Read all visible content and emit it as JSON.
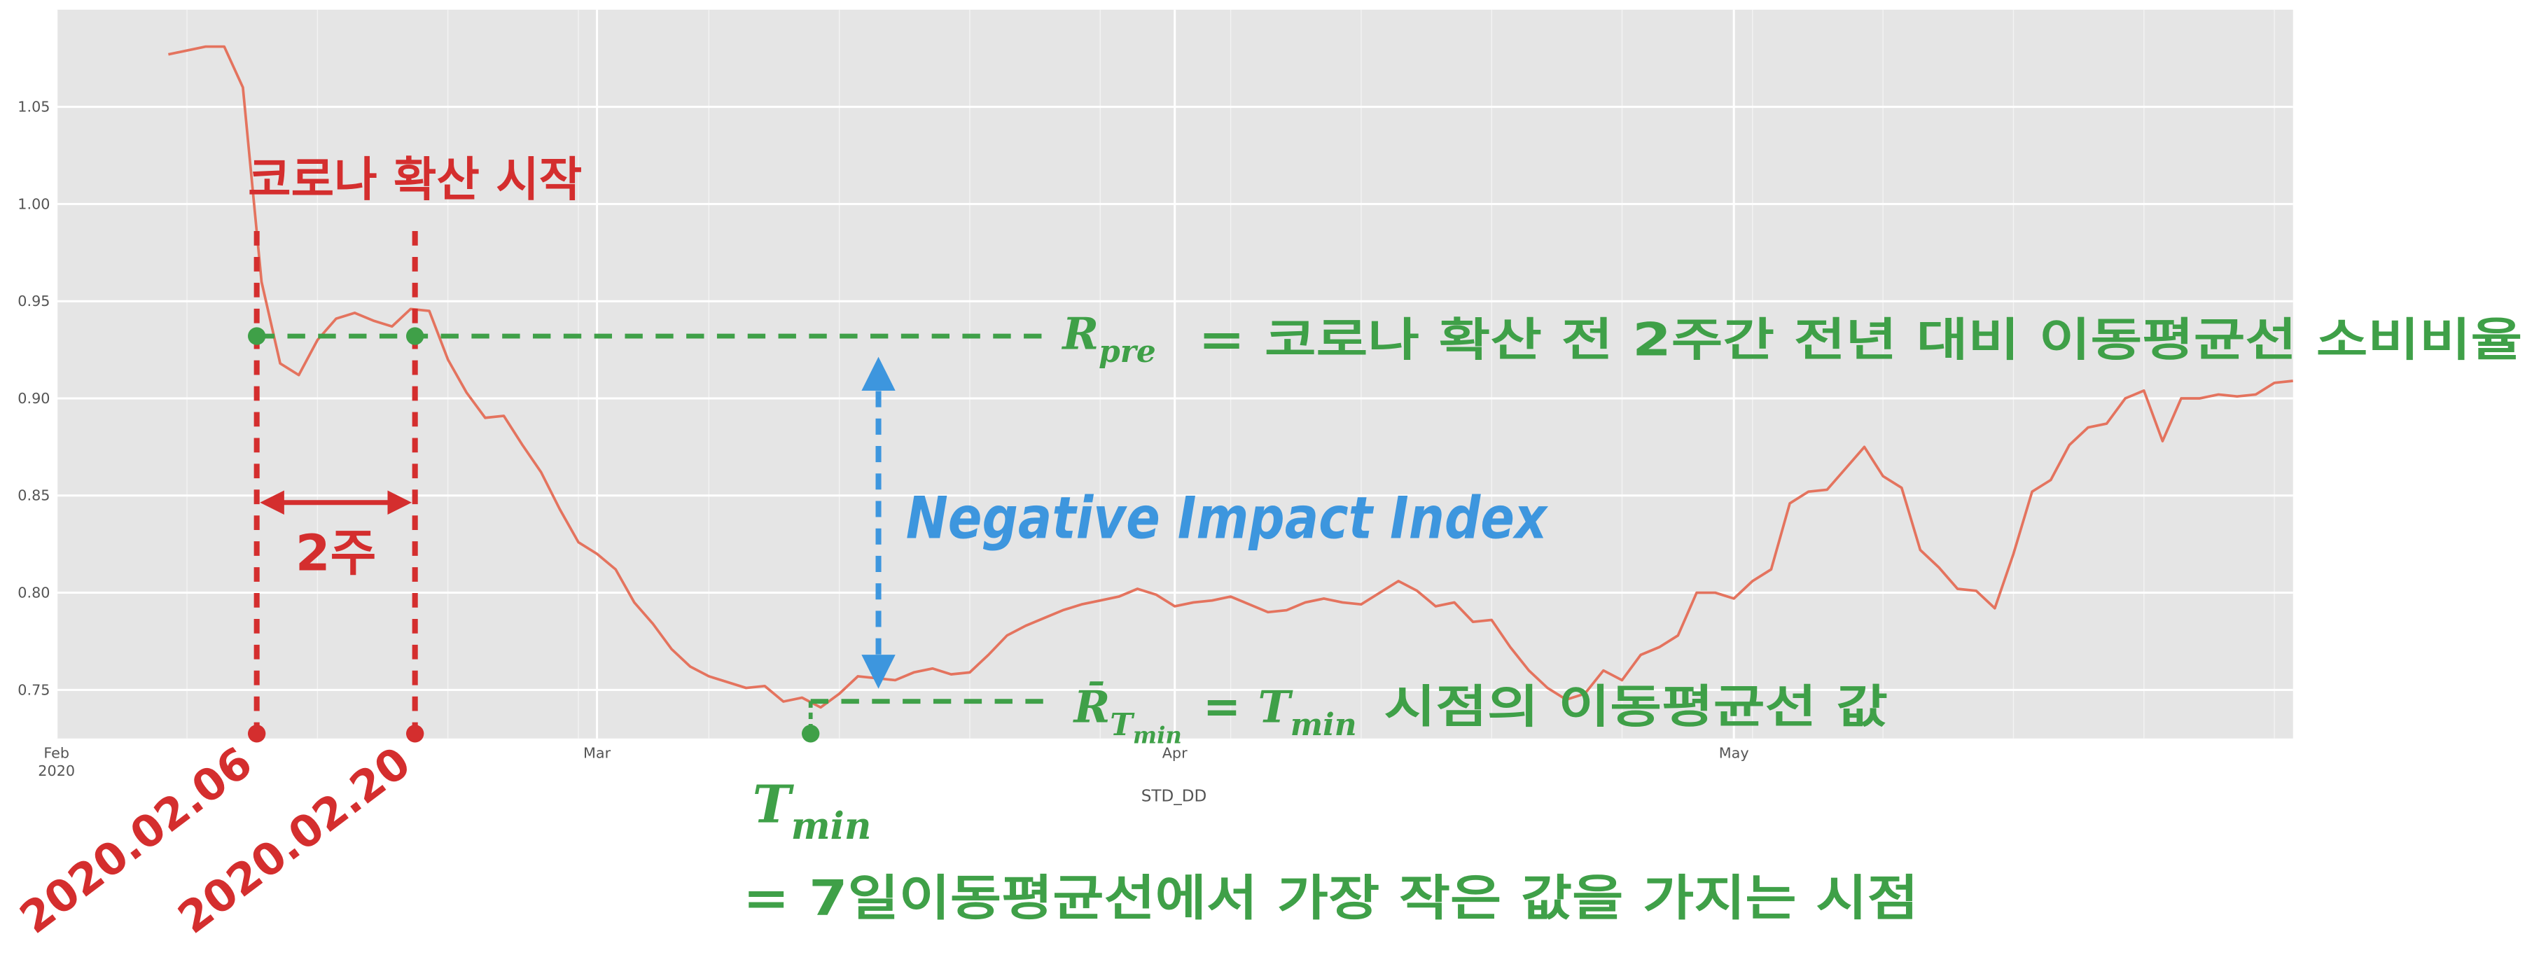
{
  "chart_data": {
    "type": "line",
    "xlabel": "STD_DD",
    "ylabel": "",
    "xlim": [
      "2020-02-01",
      "2020-05-31"
    ],
    "ylim": [
      0.725,
      1.1
    ],
    "grid": true,
    "y_ticks": [
      0.75,
      0.8,
      0.85,
      0.9,
      0.95,
      1.0,
      1.05
    ],
    "y_tick_labels": [
      "0.75",
      "0.80",
      "0.85",
      "0.90",
      "0.95",
      "1.00",
      "1.05"
    ],
    "x_ticks": [
      {
        "date": "2020-02-01",
        "label": "Feb",
        "sublabel": "2020"
      },
      {
        "date": "2020-03-01",
        "label": "Mar",
        "sublabel": ""
      },
      {
        "date": "2020-04-01",
        "label": "Apr",
        "sublabel": ""
      },
      {
        "date": "2020-05-01",
        "label": "May",
        "sublabel": ""
      }
    ],
    "series": [
      {
        "color": "#e4735e",
        "x": [
          "2020-02-07",
          "2020-02-09",
          "2020-02-10",
          "2020-02-11",
          "2020-02-12",
          "2020-02-13",
          "2020-02-14",
          "2020-02-15",
          "2020-02-16",
          "2020-02-17",
          "2020-02-18",
          "2020-02-19",
          "2020-02-20",
          "2020-02-21",
          "2020-02-22",
          "2020-02-23",
          "2020-02-24",
          "2020-02-25",
          "2020-02-26",
          "2020-02-27",
          "2020-02-28",
          "2020-02-29",
          "2020-03-01",
          "2020-03-02",
          "2020-03-03",
          "2020-03-04",
          "2020-03-05",
          "2020-03-06",
          "2020-03-07",
          "2020-03-09",
          "2020-03-10",
          "2020-03-11",
          "2020-03-12",
          "2020-03-13",
          "2020-03-14",
          "2020-03-15",
          "2020-03-16",
          "2020-03-17",
          "2020-03-18",
          "2020-03-19",
          "2020-03-20",
          "2020-03-21",
          "2020-03-22",
          "2020-03-23",
          "2020-03-24",
          "2020-03-25",
          "2020-03-26",
          "2020-03-27",
          "2020-03-28",
          "2020-03-29",
          "2020-03-30",
          "2020-03-31",
          "2020-04-01",
          "2020-04-02",
          "2020-04-03",
          "2020-04-04",
          "2020-04-05",
          "2020-04-06",
          "2020-04-07",
          "2020-04-08",
          "2020-04-09",
          "2020-04-10",
          "2020-04-11",
          "2020-04-12",
          "2020-04-13",
          "2020-04-14",
          "2020-04-15",
          "2020-04-16",
          "2020-04-17",
          "2020-04-18",
          "2020-04-19",
          "2020-04-20",
          "2020-04-21",
          "2020-04-22",
          "2020-04-23",
          "2020-04-24",
          "2020-04-25",
          "2020-04-26",
          "2020-04-27",
          "2020-04-28",
          "2020-04-29",
          "2020-04-30",
          "2020-05-01",
          "2020-05-02",
          "2020-05-03",
          "2020-05-04",
          "2020-05-05",
          "2020-05-06",
          "2020-05-07",
          "2020-05-08",
          "2020-05-09",
          "2020-05-10",
          "2020-05-11",
          "2020-05-12",
          "2020-05-13",
          "2020-05-14",
          "2020-05-15",
          "2020-05-16",
          "2020-05-17",
          "2020-05-18",
          "2020-05-19",
          "2020-05-20",
          "2020-05-21",
          "2020-05-22",
          "2020-05-23",
          "2020-05-24",
          "2020-05-25",
          "2020-05-26",
          "2020-05-27",
          "2020-05-28",
          "2020-05-29",
          "2020-05-30",
          "2020-05-31"
        ],
        "values": [
          1.077,
          1.081,
          1.081,
          1.06,
          0.96,
          0.918,
          0.912,
          0.93,
          0.941,
          0.944,
          0.94,
          0.937,
          0.946,
          0.945,
          0.92,
          0.903,
          0.89,
          0.891,
          0.876,
          0.862,
          0.843,
          0.826,
          0.82,
          0.812,
          0.795,
          0.784,
          0.771,
          0.762,
          0.757,
          0.751,
          0.752,
          0.744,
          0.746,
          0.741,
          0.748,
          0.757,
          0.756,
          0.755,
          0.759,
          0.761,
          0.758,
          0.759,
          0.768,
          0.778,
          0.783,
          0.787,
          0.791,
          0.794,
          0.796,
          0.798,
          0.802,
          0.799,
          0.793,
          0.795,
          0.796,
          0.798,
          0.794,
          0.79,
          0.791,
          0.795,
          0.797,
          0.795,
          0.794,
          0.8,
          0.806,
          0.801,
          0.793,
          0.795,
          0.785,
          0.786,
          0.772,
          0.76,
          0.751,
          0.745,
          0.748,
          0.76,
          0.755,
          0.768,
          0.772,
          0.778,
          0.8,
          0.8,
          0.797,
          0.806,
          0.812,
          0.846,
          0.852,
          0.853,
          0.864,
          0.875,
          0.86,
          0.854,
          0.822,
          0.813,
          0.802,
          0.801,
          0.792,
          0.82,
          0.852,
          0.858,
          0.876,
          0.885,
          0.887,
          0.9,
          0.904,
          0.878,
          0.9,
          0.9,
          0.902,
          0.901,
          0.902,
          0.908,
          0.909
        ]
      }
    ]
  },
  "annotations": {
    "corona_start": "코로나 확산 시작",
    "two_weeks": "2주",
    "date_start": "2020.02.06",
    "date_end": "2020.02.20",
    "r_pre_symbol": "R",
    "r_pre_sub": "pre",
    "r_pre_def": "= 코로나 확산 전 2주간 전년 대비 이동평균선 소비비율",
    "impact": "Negative Impact Index",
    "rbar_symbol": "R̄",
    "rbar_sub1": "T",
    "rbar_sub2": "min",
    "rbar_eq": "=",
    "tmin_symbol": "T",
    "tmin_sub": "min",
    "rbar_def": "시점의 이동평균선 값",
    "tmin_def": "= 7일이동평균선에서 가장 작은 값을 가지는 시점"
  },
  "colors": {
    "panel": "#e5e5e5",
    "grid": "#ffffff",
    "line": "#e4735e",
    "red": "#d42e2e",
    "green": "#3fa048",
    "blue": "#3d96de"
  }
}
